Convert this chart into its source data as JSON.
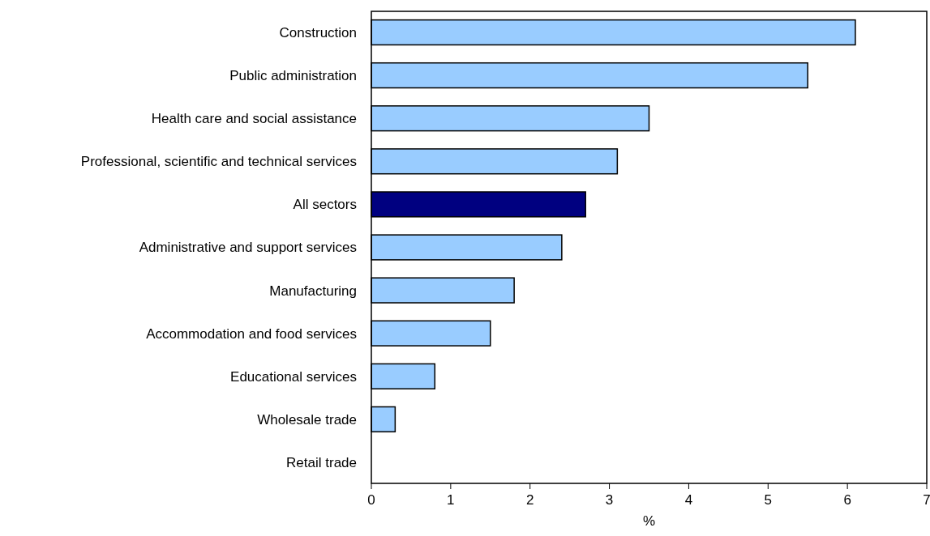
{
  "chart_data": {
    "type": "bar",
    "orientation": "horizontal",
    "xlabel": "%",
    "categories": [
      "Construction",
      "Public administration",
      "Health care and social assistance",
      "Professional, scientific and technical services",
      "All sectors",
      "Administrative and support services",
      "Manufacturing",
      "Accommodation and food services",
      "Educational services",
      "Wholesale trade",
      "Retail trade"
    ],
    "values": [
      6.1,
      5.5,
      3.5,
      3.1,
      2.7,
      2.4,
      1.8,
      1.5,
      0.8,
      0.3,
      0
    ],
    "colors": [
      "#99ccff",
      "#99ccff",
      "#99ccff",
      "#99ccff",
      "#000080",
      "#99ccff",
      "#99ccff",
      "#99ccff",
      "#99ccff",
      "#99ccff",
      "#99ccff"
    ],
    "xlim": [
      0,
      7
    ],
    "xticks": [
      0,
      1,
      2,
      3,
      4,
      5,
      6,
      7
    ]
  }
}
